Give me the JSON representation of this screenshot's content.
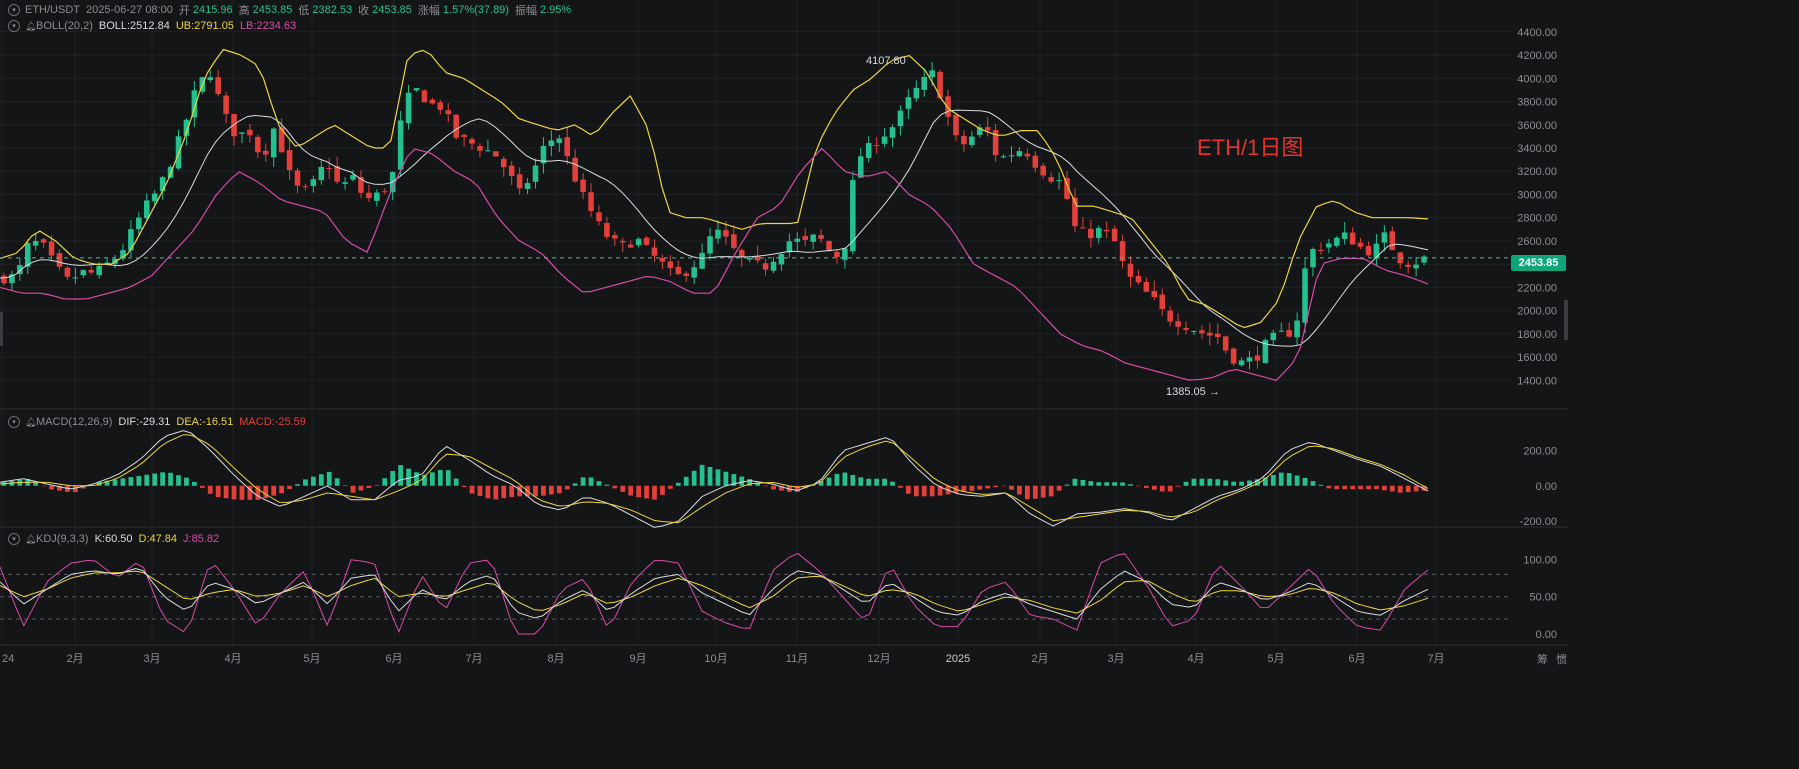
{
  "header": {
    "symbol": "ETH/USDT",
    "datetime": "2025-06-27 08:00",
    "open_label": "开",
    "open": "2415.96",
    "high_label": "高",
    "high": "2453.85",
    "low_label": "低",
    "low": "2382.53",
    "close_label": "收",
    "close": "2453.85",
    "change_label": "涨幅",
    "change": "1.57%(37.89)",
    "amp_label": "振幅",
    "amp": "2.95%"
  },
  "boll": {
    "label": "BOLL(20,2)",
    "mid": "BOLL:2512.84",
    "ub": "UB:2791.05",
    "lb": "LB:2234.63"
  },
  "macd": {
    "label": "MACD(12,26,9)",
    "dif": "DIF:-29.31",
    "dea": "DEA:-16.51",
    "macd": "MACD:-25.59"
  },
  "kdj": {
    "label": "KDJ(9,3,3)",
    "k": "K:60.50",
    "d": "D:47.84",
    "j": "J:85.82"
  },
  "overlay_text": "ETH/1日图",
  "current_price": "2453.85",
  "annotations": {
    "high": "4107.80",
    "low": "1385.05"
  },
  "corner_labels": [
    "筹",
    "惯"
  ],
  "colors": {
    "up": "#24c08f",
    "down": "#e2413b",
    "boll_mid": "#d9dbe0",
    "boll_ub": "#f0d43c",
    "boll_lb": "#d84aa8",
    "kdj_j": "#d84aa8"
  },
  "chart_data": [
    {
      "type": "candlestick",
      "name": "price",
      "x_ticks": [
        "24",
        "2月",
        "3月",
        "4月",
        "5月",
        "6月",
        "7月",
        "8月",
        "9月",
        "10月",
        "11月",
        "12月",
        "2025",
        "2月",
        "3月",
        "4月",
        "5月",
        "6月",
        "7月"
      ],
      "y_ticks": [
        "4400.00",
        "4200.00",
        "4000.00",
        "3800.00",
        "3600.00",
        "3400.00",
        "3200.00",
        "3000.00",
        "2800.00",
        "2600.00",
        "2400.00",
        "2200.00",
        "2000.00",
        "1800.00",
        "1600.00",
        "1400.00"
      ],
      "ylim": [
        1300,
        4450
      ],
      "close_path": [
        2280,
        2300,
        2600,
        2560,
        2380,
        2250,
        2330,
        2320,
        2400,
        2490,
        2700,
        2900,
        3050,
        3300,
        3600,
        3950,
        4050,
        3700,
        3500,
        3550,
        3300,
        3600,
        3200,
        3000,
        3100,
        3300,
        3050,
        3150,
        2950,
        3000,
        3100,
        3800,
        3900,
        3780,
        3750,
        3500,
        3450,
        3400,
        3350,
        3200,
        3000,
        3200,
        3450,
        3500,
        3200,
        2950,
        2750,
        2600,
        2550,
        2620,
        2500,
        2400,
        2280,
        2350,
        2450,
        2700,
        2600,
        2450,
        2400,
        2380,
        2500,
        2620,
        2580,
        2650,
        2500,
        2450,
        3300,
        3400,
        3500,
        3600,
        3800,
        3950,
        4050,
        3700,
        3400,
        3500,
        3600,
        3300,
        3350,
        3400,
        3250,
        3150,
        3100,
        2700,
        2650,
        2700,
        2600,
        2300,
        2200,
        2100,
        1950,
        1900,
        1850,
        1800,
        1780,
        1600,
        1550,
        1600,
        1750,
        1800,
        1820,
        2500,
        2550,
        2600,
        2650,
        2550,
        2500,
        2650,
        2450,
        2400,
        2450
      ],
      "boll_ub_path": [
        2450,
        2500,
        2700,
        2600,
        2450,
        2400,
        2400,
        2500,
        2800,
        3100,
        3500,
        4000,
        4250,
        4200,
        4100,
        3600,
        3400,
        3500,
        3600,
        3500,
        3400,
        3400,
        4200,
        4250,
        4050,
        4000,
        3900,
        3800,
        3650,
        3600,
        3550,
        3600,
        3500,
        3700,
        3850,
        3550,
        2850,
        2800,
        2800,
        2750,
        2700,
        2750,
        2750,
        2750,
        3400,
        3700,
        3900,
        4000,
        4150,
        4200,
        4050,
        3750,
        3650,
        3550,
        3500,
        3550,
        3550,
        3300,
        2900,
        2900,
        2850,
        2800,
        2600,
        2400,
        2100,
        2050,
        1950,
        1850,
        1900,
        2100,
        2600,
        2900,
        2950,
        2850,
        2800,
        2800,
        2800,
        2790
      ],
      "boll_lb_path": [
        2200,
        2150,
        2150,
        2100,
        2100,
        2150,
        2200,
        2300,
        2500,
        2700,
        3000,
        3200,
        3100,
        2950,
        2900,
        2850,
        2600,
        2500,
        3000,
        3400,
        3350,
        3200,
        3100,
        2800,
        2600,
        2500,
        2300,
        2150,
        2200,
        2250,
        2300,
        2250,
        2150,
        2150,
        2500,
        2800,
        2900,
        3200,
        3400,
        3200,
        3150,
        3200,
        3000,
        2900,
        2700,
        2400,
        2300,
        2200,
        2000,
        1800,
        1700,
        1650,
        1550,
        1500,
        1450,
        1400,
        1420,
        1500,
        1450,
        1400,
        1600,
        2400,
        2450,
        2450,
        2350,
        2300,
        2230
      ],
      "annotations": [
        {
          "text": "4107.80",
          "value": 4107.8
        },
        {
          "text": "1385.05",
          "value": 1385.05
        }
      ],
      "last_price": 2453.85
    },
    {
      "type": "macd",
      "y_ticks": [
        "200.00",
        "0.00",
        "-200.00"
      ],
      "ylim": [
        -240,
        260
      ],
      "dif_path": [
        20,
        40,
        10,
        -20,
        10,
        60,
        150,
        280,
        320,
        200,
        60,
        -60,
        -120,
        -60,
        0,
        -80,
        -80,
        30,
        60,
        230,
        150,
        60,
        0,
        -110,
        -140,
        -60,
        -100,
        -170,
        -240,
        -200,
        -60,
        0,
        30,
        10,
        -30,
        20,
        200,
        240,
        280,
        120,
        0,
        -50,
        -60,
        -40,
        -160,
        -230,
        -160,
        -150,
        -130,
        -150,
        -200,
        -130,
        -60,
        -20,
        50,
        200,
        250,
        200,
        150,
        110,
        40,
        -30
      ],
      "dea_path": [
        10,
        20,
        20,
        0,
        0,
        40,
        120,
        240,
        300,
        230,
        100,
        -20,
        -100,
        -80,
        -40,
        -60,
        -80,
        -30,
        30,
        180,
        170,
        100,
        30,
        -80,
        -120,
        -90,
        -100,
        -140,
        -200,
        -210,
        -120,
        -40,
        10,
        20,
        -10,
        10,
        160,
        220,
        260,
        150,
        30,
        -30,
        -50,
        -40,
        -120,
        -200,
        -180,
        -160,
        -140,
        -145,
        -180,
        -150,
        -80,
        -30,
        30,
        160,
        230,
        210,
        160,
        120,
        60,
        -16
      ]
    },
    {
      "type": "kdj",
      "y_ticks": [
        "100.00",
        "50.00",
        "0.00"
      ],
      "ylim": [
        -8,
        110
      ],
      "k_path": [
        70,
        40,
        60,
        80,
        85,
        80,
        90,
        50,
        30,
        70,
        60,
        40,
        55,
        70,
        40,
        75,
        80,
        30,
        60,
        45,
        70,
        80,
        30,
        20,
        45,
        60,
        30,
        55,
        75,
        80,
        55,
        40,
        25,
        60,
        85,
        80,
        60,
        40,
        70,
        50,
        30,
        25,
        45,
        55,
        40,
        30,
        20,
        60,
        85,
        70,
        40,
        35,
        70,
        60,
        45,
        55,
        70,
        50,
        30,
        25,
        45,
        60
      ],
      "d_path": [
        65,
        50,
        60,
        75,
        82,
        82,
        85,
        65,
        45,
        55,
        60,
        50,
        55,
        65,
        50,
        65,
        75,
        50,
        55,
        50,
        60,
        70,
        45,
        30,
        40,
        55,
        40,
        50,
        65,
        75,
        65,
        50,
        35,
        50,
        75,
        78,
        65,
        50,
        60,
        55,
        40,
        30,
        40,
        50,
        45,
        35,
        28,
        45,
        70,
        72,
        55,
        42,
        58,
        58,
        50,
        52,
        62,
        55,
        40,
        32,
        38,
        48
      ],
      "j_path": [
        90,
        10,
        70,
        95,
        100,
        75,
        100,
        20,
        0,
        100,
        60,
        10,
        55,
        85,
        10,
        100,
        95,
        0,
        80,
        30,
        95,
        100,
        0,
        0,
        60,
        75,
        5,
        70,
        100,
        95,
        30,
        15,
        5,
        85,
        110,
        85,
        50,
        15,
        95,
        40,
        10,
        10,
        60,
        70,
        25,
        20,
        5,
        95,
        110,
        65,
        10,
        20,
        95,
        65,
        30,
        60,
        90,
        40,
        10,
        5,
        60,
        86
      ]
    }
  ]
}
